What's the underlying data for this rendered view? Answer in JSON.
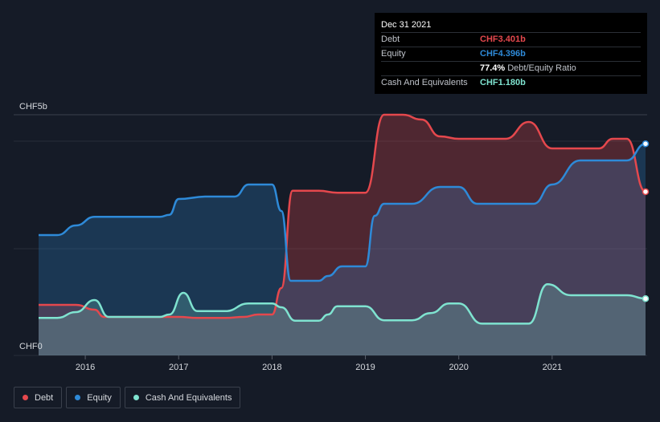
{
  "chart_data": {
    "type": "area",
    "y_axis": {
      "top_label": "CHF5b",
      "bottom_label": "CHF0",
      "ylim": [
        0,
        5.0
      ],
      "unit": "CHF billion"
    },
    "x_ticks": [
      "2016",
      "2017",
      "2018",
      "2019",
      "2020",
      "2021"
    ],
    "grid": true,
    "legend_placement": "bottom-left",
    "series": [
      {
        "name": "Debt",
        "color": "#e5484d",
        "points": [
          [
            2015.5,
            1.05
          ],
          [
            2015.7,
            1.05
          ],
          [
            2015.9,
            1.05
          ],
          [
            2016.1,
            0.95
          ],
          [
            2016.2,
            0.8
          ],
          [
            2016.5,
            0.8
          ],
          [
            2016.8,
            0.8
          ],
          [
            2017.0,
            0.8
          ],
          [
            2017.2,
            0.78
          ],
          [
            2017.5,
            0.78
          ],
          [
            2017.7,
            0.8
          ],
          [
            2017.85,
            0.85
          ],
          [
            2018.0,
            0.85
          ],
          [
            2018.1,
            1.4
          ],
          [
            2018.22,
            3.42
          ],
          [
            2018.4,
            3.42
          ],
          [
            2018.5,
            3.42
          ],
          [
            2018.7,
            3.38
          ],
          [
            2018.9,
            3.38
          ],
          [
            2019.0,
            3.38
          ],
          [
            2019.2,
            5.0
          ],
          [
            2019.4,
            5.0
          ],
          [
            2019.6,
            4.9
          ],
          [
            2019.8,
            4.55
          ],
          [
            2020.0,
            4.5
          ],
          [
            2020.2,
            4.5
          ],
          [
            2020.5,
            4.5
          ],
          [
            2020.75,
            4.85
          ],
          [
            2021.0,
            4.3
          ],
          [
            2021.2,
            4.3
          ],
          [
            2021.5,
            4.3
          ],
          [
            2021.65,
            4.5
          ],
          [
            2021.8,
            4.5
          ],
          [
            2022.0,
            3.401
          ]
        ]
      },
      {
        "name": "Equity",
        "color": "#2e8ad8",
        "points": [
          [
            2015.5,
            2.5
          ],
          [
            2015.7,
            2.5
          ],
          [
            2015.9,
            2.7
          ],
          [
            2016.1,
            2.88
          ],
          [
            2016.5,
            2.88
          ],
          [
            2016.8,
            2.88
          ],
          [
            2016.9,
            2.92
          ],
          [
            2017.0,
            3.25
          ],
          [
            2017.3,
            3.3
          ],
          [
            2017.6,
            3.3
          ],
          [
            2017.75,
            3.55
          ],
          [
            2017.95,
            3.55
          ],
          [
            2018.0,
            3.55
          ],
          [
            2018.1,
            3.0
          ],
          [
            2018.2,
            1.55
          ],
          [
            2018.3,
            1.55
          ],
          [
            2018.5,
            1.55
          ],
          [
            2018.6,
            1.65
          ],
          [
            2018.75,
            1.85
          ],
          [
            2019.0,
            1.85
          ],
          [
            2019.1,
            2.9
          ],
          [
            2019.2,
            3.15
          ],
          [
            2019.5,
            3.15
          ],
          [
            2019.8,
            3.5
          ],
          [
            2020.0,
            3.5
          ],
          [
            2020.2,
            3.15
          ],
          [
            2020.5,
            3.15
          ],
          [
            2020.8,
            3.15
          ],
          [
            2021.0,
            3.55
          ],
          [
            2021.3,
            4.05
          ],
          [
            2021.6,
            4.05
          ],
          [
            2021.8,
            4.05
          ],
          [
            2022.0,
            4.396
          ]
        ]
      },
      {
        "name": "Cash And Equivalents",
        "color": "#7fe3d0",
        "points": [
          [
            2015.5,
            0.78
          ],
          [
            2015.7,
            0.78
          ],
          [
            2015.9,
            0.9
          ],
          [
            2016.1,
            1.15
          ],
          [
            2016.25,
            0.8
          ],
          [
            2016.5,
            0.8
          ],
          [
            2016.8,
            0.8
          ],
          [
            2016.9,
            0.85
          ],
          [
            2017.05,
            1.3
          ],
          [
            2017.2,
            0.92
          ],
          [
            2017.5,
            0.92
          ],
          [
            2017.75,
            1.08
          ],
          [
            2018.0,
            1.08
          ],
          [
            2018.1,
            1.0
          ],
          [
            2018.25,
            0.72
          ],
          [
            2018.5,
            0.72
          ],
          [
            2018.6,
            0.85
          ],
          [
            2018.7,
            1.02
          ],
          [
            2019.0,
            1.02
          ],
          [
            2019.2,
            0.73
          ],
          [
            2019.5,
            0.73
          ],
          [
            2019.7,
            0.88
          ],
          [
            2019.9,
            1.08
          ],
          [
            2020.0,
            1.08
          ],
          [
            2020.25,
            0.66
          ],
          [
            2020.5,
            0.66
          ],
          [
            2020.75,
            0.66
          ],
          [
            2020.95,
            1.48
          ],
          [
            2021.2,
            1.25
          ],
          [
            2021.5,
            1.25
          ],
          [
            2021.8,
            1.25
          ],
          [
            2022.0,
            1.18
          ]
        ]
      }
    ]
  },
  "tooltip": {
    "date": "Dec 31 2021",
    "debt_label": "Debt",
    "debt_value": "CHF3.401b",
    "equity_label": "Equity",
    "equity_value": "CHF4.396b",
    "ratio_value": "77.4%",
    "ratio_label": "Debt/Equity Ratio",
    "cash_label": "Cash And Equivalents",
    "cash_value": "CHF1.180b"
  },
  "legend": {
    "debt": "Debt",
    "equity": "Equity",
    "cash": "Cash And Equivalents"
  },
  "colors": {
    "background": "#151b27",
    "debt": "#e5484d",
    "equity": "#2e8ad8",
    "cash": "#7fe3d0"
  }
}
